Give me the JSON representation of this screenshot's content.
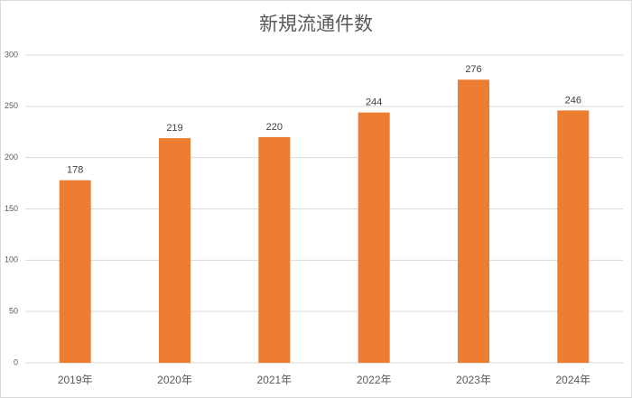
{
  "chart_data": {
    "type": "bar",
    "title": "新規流通件数",
    "categories": [
      "2019年",
      "2020年",
      "2021年",
      "2022年",
      "2023年",
      "2024年"
    ],
    "values": [
      178,
      219,
      220,
      244,
      276,
      246
    ],
    "color": "#ED7D31",
    "ylim": [
      0,
      300
    ],
    "yticks": [
      0,
      50,
      100,
      150,
      200,
      250,
      300
    ],
    "grid": true,
    "data_labels": true
  }
}
